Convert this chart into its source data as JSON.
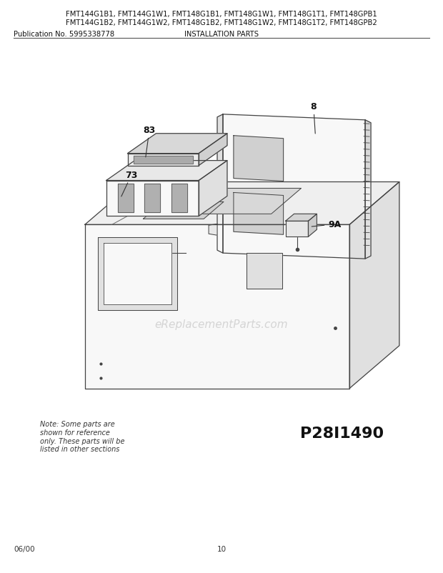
{
  "bg_color": "#ffffff",
  "title_line1": "FMT144G1B1, FMT144G1W1, FMT148G1B1, FMT148G1W1, FMT148G1T1, FMT148GPB1",
  "title_line2": "FMT144G1B2, FMT144G1W2, FMT148G1B2, FMT148G1W2, FMT148G1T2, FMT148GPB2",
  "pub_no": "Publication No. 5995338778",
  "section": "INSTALLATION PARTS",
  "footer_left": "06/00",
  "footer_center": "10",
  "diagram_id": "P28I1490",
  "note_text": "Note: Some parts are\nshown for reference\nonly. These parts will be\nlisted in other sections",
  "watermark": "eReplacementParts.com"
}
